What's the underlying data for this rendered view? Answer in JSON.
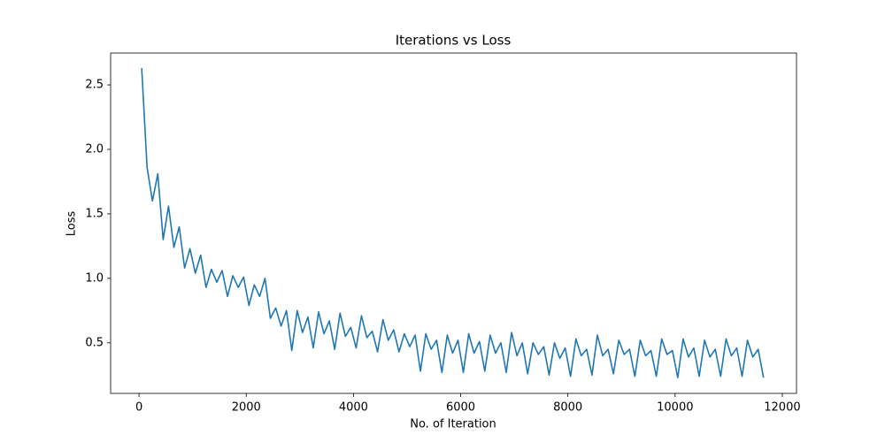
{
  "chart_data": {
    "type": "line",
    "title": "Iterations vs Loss",
    "x_label": "No. of Iteration",
    "y_label": "Loss",
    "x": [
      50,
      150,
      250,
      350,
      450,
      550,
      650,
      750,
      850,
      950,
      1050,
      1150,
      1250,
      1350,
      1450,
      1550,
      1650,
      1750,
      1850,
      1950,
      2050,
      2150,
      2250,
      2350,
      2450,
      2550,
      2650,
      2750,
      2850,
      2950,
      3050,
      3150,
      3250,
      3350,
      3450,
      3550,
      3650,
      3750,
      3850,
      3950,
      4050,
      4150,
      4250,
      4350,
      4450,
      4550,
      4650,
      4750,
      4850,
      4950,
      5050,
      5150,
      5250,
      5350,
      5450,
      5550,
      5650,
      5750,
      5850,
      5950,
      6050,
      6150,
      6250,
      6350,
      6450,
      6550,
      6650,
      6750,
      6850,
      6950,
      7050,
      7150,
      7250,
      7350,
      7450,
      7550,
      7650,
      7750,
      7850,
      7950,
      8050,
      8150,
      8250,
      8350,
      8450,
      8550,
      8650,
      8750,
      8850,
      8950,
      9050,
      9150,
      9250,
      9350,
      9450,
      9550,
      9650,
      9750,
      9850,
      9950,
      10050,
      10150,
      10250,
      10350,
      10450,
      10550,
      10650,
      10750,
      10850,
      10950,
      11050,
      11150,
      11250,
      11350,
      11450,
      11550,
      11650
    ],
    "series": [
      {
        "name": "Loss",
        "color": "#1f77b4",
        "values": [
          2.63,
          1.86,
          1.6,
          1.81,
          1.3,
          1.56,
          1.24,
          1.4,
          1.08,
          1.23,
          1.04,
          1.18,
          0.93,
          1.07,
          0.97,
          1.06,
          0.86,
          1.02,
          0.93,
          1.01,
          0.79,
          0.95,
          0.86,
          1.0,
          0.69,
          0.77,
          0.63,
          0.75,
          0.44,
          0.75,
          0.58,
          0.7,
          0.46,
          0.74,
          0.57,
          0.67,
          0.45,
          0.73,
          0.55,
          0.62,
          0.46,
          0.71,
          0.54,
          0.59,
          0.43,
          0.68,
          0.52,
          0.6,
          0.43,
          0.57,
          0.47,
          0.56,
          0.28,
          0.57,
          0.45,
          0.52,
          0.27,
          0.56,
          0.42,
          0.52,
          0.27,
          0.57,
          0.42,
          0.51,
          0.28,
          0.56,
          0.42,
          0.5,
          0.27,
          0.58,
          0.4,
          0.5,
          0.26,
          0.5,
          0.41,
          0.47,
          0.25,
          0.5,
          0.38,
          0.46,
          0.24,
          0.53,
          0.4,
          0.45,
          0.25,
          0.56,
          0.4,
          0.45,
          0.26,
          0.52,
          0.41,
          0.45,
          0.24,
          0.52,
          0.4,
          0.44,
          0.24,
          0.53,
          0.41,
          0.44,
          0.23,
          0.53,
          0.39,
          0.46,
          0.24,
          0.52,
          0.39,
          0.45,
          0.24,
          0.53,
          0.4,
          0.46,
          0.24,
          0.52,
          0.39,
          0.45,
          0.23
        ]
      }
    ],
    "xlim": [
      -530,
      12265
    ],
    "ylim": [
      0.108,
      2.747
    ],
    "xticks": [
      0,
      2000,
      4000,
      6000,
      8000,
      10000,
      12000
    ],
    "yticks": [
      0.5,
      {
        "value": 1,
        "label": "1.0"
      },
      1.5,
      {
        "value": 2,
        "label": "2.0"
      },
      2.5
    ]
  }
}
